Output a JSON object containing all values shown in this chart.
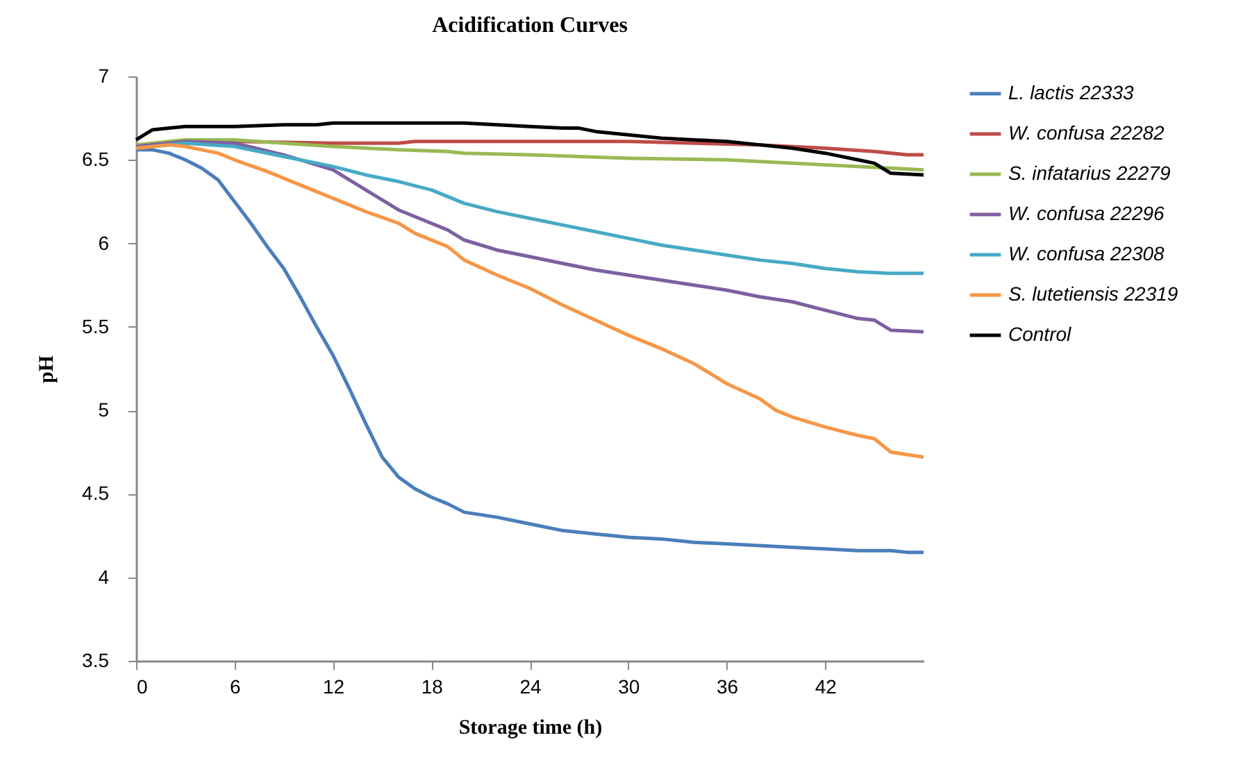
{
  "chart_data": {
    "type": "line",
    "title": "Acidification Curves",
    "xlabel": "Storage time (h)",
    "ylabel": "pH",
    "xlim": [
      0,
      48
    ],
    "xticks": [
      0,
      6,
      12,
      18,
      24,
      30,
      36,
      42
    ],
    "ylim": [
      3.5,
      7
    ],
    "yticks": [
      3.5,
      4,
      4.5,
      5,
      5.5,
      6,
      6.5,
      7
    ],
    "grid": false,
    "legend": "right",
    "marker": "none",
    "line_style": "solid",
    "series": [
      {
        "name": "L. lactis 22333",
        "color": "#4a7ebb",
        "x": [
          0,
          1,
          2,
          3,
          4,
          5,
          6,
          7,
          8,
          9,
          10,
          11,
          12,
          13,
          14,
          15,
          16,
          17,
          18,
          19,
          20,
          22,
          24,
          26,
          28,
          30,
          32,
          34,
          36,
          38,
          40,
          42,
          44,
          46,
          47,
          48
        ],
        "values": [
          6.56,
          6.56,
          6.54,
          6.5,
          6.45,
          6.38,
          6.25,
          6.12,
          5.98,
          5.85,
          5.68,
          5.5,
          5.33,
          5.13,
          4.92,
          4.72,
          4.6,
          4.53,
          4.48,
          4.44,
          4.39,
          4.36,
          4.32,
          4.28,
          4.26,
          4.24,
          4.23,
          4.21,
          4.2,
          4.19,
          4.18,
          4.17,
          4.16,
          4.16,
          4.15,
          4.15
        ]
      },
      {
        "name": "W. confusa 22282",
        "color": "#be4b48",
        "x": [
          0,
          3,
          6,
          12,
          16,
          17,
          24,
          30,
          34,
          38,
          42,
          45,
          47,
          48
        ],
        "values": [
          6.58,
          6.61,
          6.61,
          6.6,
          6.6,
          6.61,
          6.61,
          6.61,
          6.6,
          6.59,
          6.57,
          6.55,
          6.53,
          6.53
        ]
      },
      {
        "name": "S. infatarius 22279",
        "color": "#98b954",
        "x": [
          0,
          3,
          6,
          9,
          12,
          16,
          19,
          20,
          24,
          30,
          36,
          42,
          46,
          48
        ],
        "values": [
          6.59,
          6.62,
          6.62,
          6.6,
          6.58,
          6.56,
          6.55,
          6.54,
          6.53,
          6.51,
          6.5,
          6.47,
          6.45,
          6.44
        ]
      },
      {
        "name": "W. confusa 22296",
        "color": "#7d60a0",
        "x": [
          0,
          3,
          6,
          9,
          12,
          14,
          16,
          18,
          19,
          20,
          22,
          24,
          26,
          28,
          30,
          32,
          34,
          36,
          38,
          40,
          42,
          44,
          45,
          46,
          48
        ],
        "values": [
          6.58,
          6.61,
          6.6,
          6.53,
          6.44,
          6.32,
          6.2,
          6.12,
          6.08,
          6.02,
          5.96,
          5.92,
          5.88,
          5.84,
          5.81,
          5.78,
          5.75,
          5.72,
          5.68,
          5.65,
          5.6,
          5.55,
          5.54,
          5.48,
          5.47
        ]
      },
      {
        "name": "W. confusa 22308",
        "color": "#46aac5",
        "x": [
          0,
          3,
          6,
          9,
          12,
          14,
          16,
          18,
          20,
          22,
          24,
          26,
          28,
          30,
          32,
          34,
          36,
          38,
          40,
          42,
          44,
          46,
          48
        ],
        "values": [
          6.57,
          6.6,
          6.58,
          6.52,
          6.46,
          6.41,
          6.37,
          6.32,
          6.24,
          6.19,
          6.15,
          6.11,
          6.07,
          6.03,
          5.99,
          5.96,
          5.93,
          5.9,
          5.88,
          5.85,
          5.83,
          5.82,
          5.82
        ]
      },
      {
        "name": "S. lutetiensis 22319",
        "color": "#f79646",
        "x": [
          0,
          2,
          3,
          5,
          6,
          8,
          10,
          12,
          14,
          16,
          17,
          19,
          20,
          22,
          24,
          26,
          28,
          30,
          32,
          34,
          35,
          36,
          38,
          39,
          40,
          42,
          44,
          45,
          46,
          48
        ],
        "values": [
          6.57,
          6.59,
          6.58,
          6.54,
          6.5,
          6.43,
          6.35,
          6.27,
          6.19,
          6.12,
          6.06,
          5.98,
          5.9,
          5.81,
          5.73,
          5.63,
          5.54,
          5.45,
          5.37,
          5.28,
          5.22,
          5.16,
          5.07,
          5.0,
          4.96,
          4.9,
          4.85,
          4.83,
          4.75,
          4.72
        ]
      },
      {
        "name": "Control",
        "color": "#000000",
        "x": [
          0,
          1,
          3,
          6,
          9,
          11,
          12,
          20,
          22,
          24,
          26,
          27,
          28,
          30,
          32,
          34,
          36,
          38,
          40,
          42,
          44,
          45,
          46,
          48
        ],
        "values": [
          6.62,
          6.68,
          6.7,
          6.7,
          6.71,
          6.71,
          6.72,
          6.72,
          6.71,
          6.7,
          6.69,
          6.69,
          6.67,
          6.65,
          6.63,
          6.62,
          6.61,
          6.59,
          6.57,
          6.54,
          6.5,
          6.48,
          6.42,
          6.41
        ]
      }
    ]
  }
}
